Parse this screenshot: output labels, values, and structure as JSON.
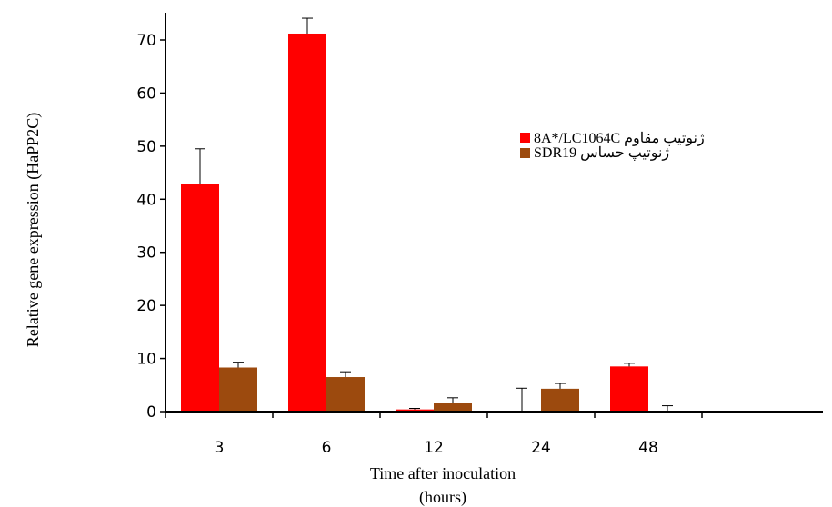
{
  "chart_data": {
    "type": "bar",
    "title": "",
    "xlabel": "Time after inoculation",
    "xlabel_line2": "(hours)",
    "ylabel": "Relative gene expression (HaPP2C)",
    "categories": [
      "3",
      "6",
      "12",
      "24",
      "48"
    ],
    "ylim": [
      0,
      75
    ],
    "yticks": [
      0,
      10,
      20,
      30,
      40,
      50,
      60,
      70
    ],
    "ytick_labels": [
      "0",
      "10",
      "20",
      "30",
      "40",
      "50",
      "60",
      "70"
    ],
    "grid": false,
    "legend_position": "top-right",
    "series": [
      {
        "name": "8A*/LC1064C ژنوتیپ مقاوم",
        "color": "#ff0000",
        "values": [
          42.8,
          71.2,
          0.4,
          0,
          8.5
        ],
        "errors": [
          6.7,
          2.9,
          0.2,
          4.4,
          0.6
        ]
      },
      {
        "name": "SDR19 ژنوتیپ حساس",
        "color": "#9c4a0e",
        "values": [
          8.3,
          6.5,
          1.7,
          4.3,
          0
        ],
        "errors": [
          1.0,
          1.0,
          0.9,
          1.0,
          1.1
        ]
      }
    ]
  }
}
